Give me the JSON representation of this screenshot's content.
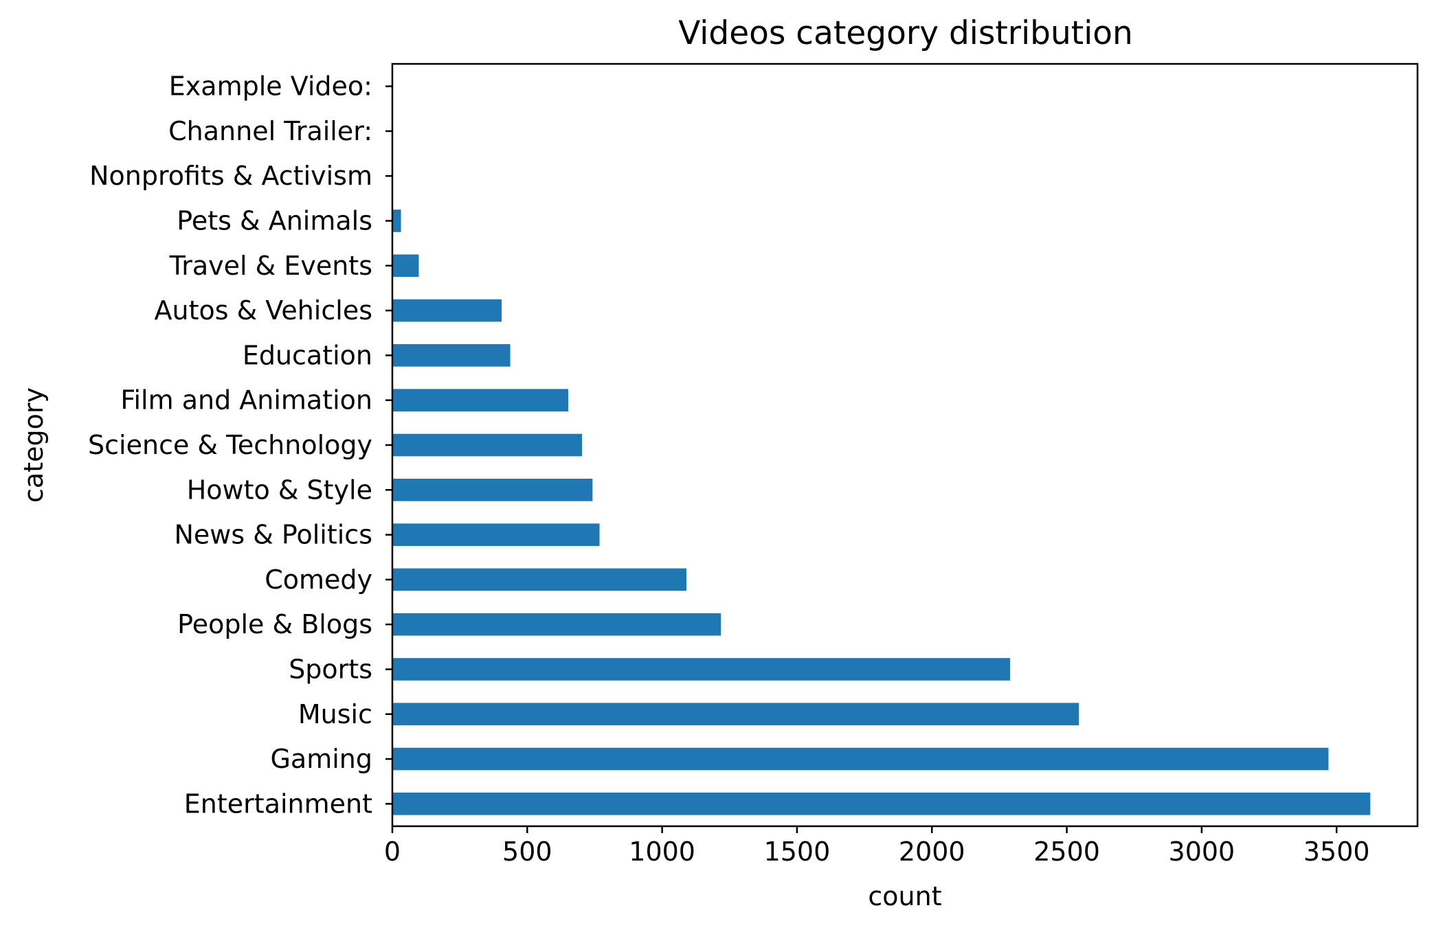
{
  "chart_data": {
    "type": "bar",
    "orientation": "horizontal",
    "title": "Videos category distribution",
    "xlabel": "count",
    "ylabel": "category",
    "categories": [
      "Entertainment",
      "Gaming",
      "Music",
      "Sports",
      "People & Blogs",
      "Comedy",
      "News & Politics",
      "Howto & Style",
      "Science & Technology",
      "Film and Animation",
      "Education",
      "Autos & Vehicles",
      "Travel & Events",
      "Pets & Animals",
      "Nonprofits & Activism",
      "Channel Trailer:",
      "Example Video:"
    ],
    "values": [
      3625,
      3470,
      2545,
      2290,
      1218,
      1090,
      768,
      742,
      703,
      652,
      437,
      405,
      98,
      32,
      2,
      1,
      1
    ],
    "xlim": [
      0,
      3800
    ],
    "xticks": [
      0,
      500,
      1000,
      1500,
      2000,
      2500,
      3000,
      3500
    ],
    "grid": false,
    "bar_color": "#1f77b4"
  }
}
